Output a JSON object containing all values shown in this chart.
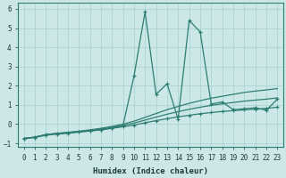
{
  "xlabel": "Humidex (Indice chaleur)",
  "xlim": [
    -0.5,
    23.5
  ],
  "ylim": [
    -1.2,
    6.3
  ],
  "yticks": [
    -1,
    0,
    1,
    2,
    3,
    4,
    5,
    6
  ],
  "xticks": [
    0,
    1,
    2,
    3,
    4,
    5,
    6,
    7,
    8,
    9,
    10,
    11,
    12,
    13,
    14,
    15,
    16,
    17,
    18,
    19,
    20,
    21,
    22,
    23
  ],
  "background_color": "#cce8e6",
  "line_color": "#2e7d72",
  "grid_color": "#aad4d0",
  "series": {
    "spiky_x": [
      0,
      1,
      2,
      3,
      4,
      5,
      6,
      7,
      8,
      9,
      10,
      11,
      12,
      13,
      14,
      15,
      16,
      17,
      18,
      19,
      20,
      21,
      22,
      23
    ],
    "spiky_y": [
      -0.75,
      -0.7,
      -0.58,
      -0.52,
      -0.48,
      -0.42,
      -0.36,
      -0.3,
      -0.2,
      -0.08,
      2.5,
      5.85,
      1.55,
      2.1,
      0.25,
      5.4,
      4.8,
      1.05,
      1.15,
      0.75,
      0.8,
      0.85,
      0.72,
      1.3
    ],
    "upper_x": [
      0,
      1,
      2,
      3,
      4,
      5,
      6,
      7,
      8,
      9,
      10,
      11,
      12,
      13,
      14,
      15,
      16,
      17,
      18,
      19,
      20,
      21,
      22,
      23
    ],
    "upper_y": [
      -0.75,
      -0.68,
      -0.55,
      -0.48,
      -0.43,
      -0.37,
      -0.3,
      -0.22,
      -0.12,
      0.0,
      0.15,
      0.35,
      0.55,
      0.75,
      0.92,
      1.08,
      1.22,
      1.35,
      1.45,
      1.55,
      1.65,
      1.72,
      1.78,
      1.85
    ],
    "lower_x": [
      0,
      1,
      2,
      3,
      4,
      5,
      6,
      7,
      8,
      9,
      10,
      11,
      12,
      13,
      14,
      15,
      16,
      17,
      18,
      19,
      20,
      21,
      22,
      23
    ],
    "lower_y": [
      -0.75,
      -0.68,
      -0.55,
      -0.5,
      -0.45,
      -0.4,
      -0.35,
      -0.3,
      -0.22,
      -0.14,
      -0.05,
      0.07,
      0.18,
      0.28,
      0.38,
      0.46,
      0.54,
      0.6,
      0.66,
      0.7,
      0.74,
      0.78,
      0.82,
      0.88
    ],
    "mid_x": [
      0,
      1,
      2,
      3,
      4,
      5,
      6,
      7,
      8,
      9,
      10,
      11,
      12,
      13,
      14,
      15,
      16,
      17,
      18,
      19,
      20,
      21,
      22,
      23
    ],
    "mid_y": [
      -0.75,
      -0.68,
      -0.55,
      -0.49,
      -0.44,
      -0.385,
      -0.325,
      -0.26,
      -0.17,
      -0.07,
      0.05,
      0.21,
      0.365,
      0.515,
      0.65,
      0.77,
      0.88,
      0.975,
      1.055,
      1.125,
      1.195,
      1.25,
      1.3,
      1.365
    ]
  }
}
